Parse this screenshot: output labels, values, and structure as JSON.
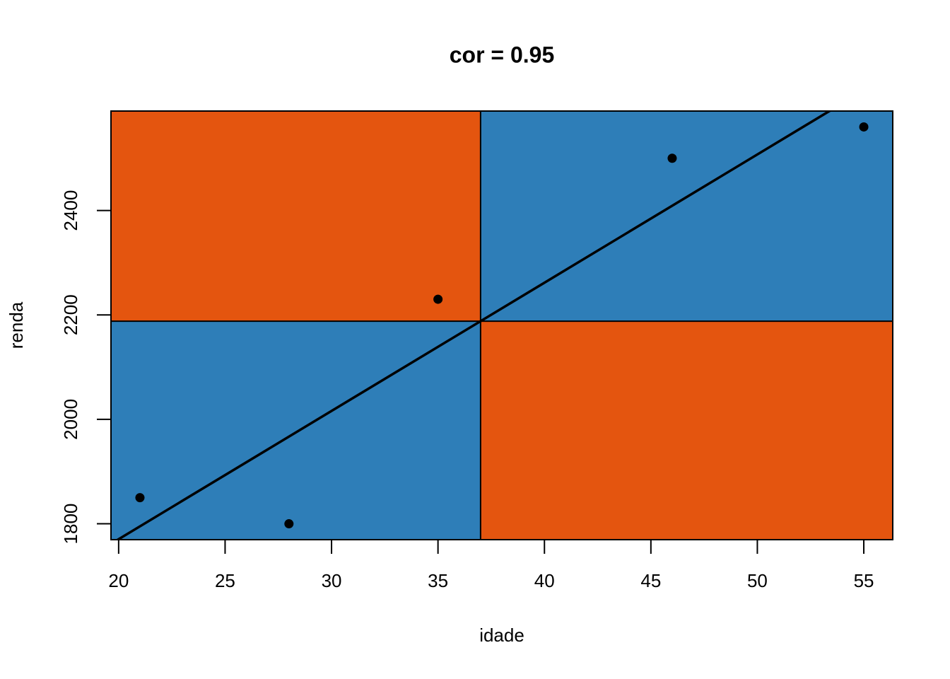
{
  "chart_data": {
    "type": "scatter",
    "title": "cor = 0.95",
    "x_label": "idade",
    "y_label": "renda",
    "x": [
      21,
      28,
      35,
      46,
      55
    ],
    "values": [
      1850,
      1800,
      2230,
      2500,
      2560
    ],
    "color": "#000000",
    "quadrant_colors": {
      "positive": "#2e7eb8",
      "negative": "#e4550f"
    },
    "xlim": [
      19.64,
      56.36
    ],
    "ylim": [
      1769.6,
      2590.4
    ],
    "xticks": [
      20,
      25,
      30,
      35,
      40,
      45,
      50,
      55
    ],
    "yticks": [
      1800,
      2000,
      2200,
      2400
    ],
    "grid": false
  }
}
